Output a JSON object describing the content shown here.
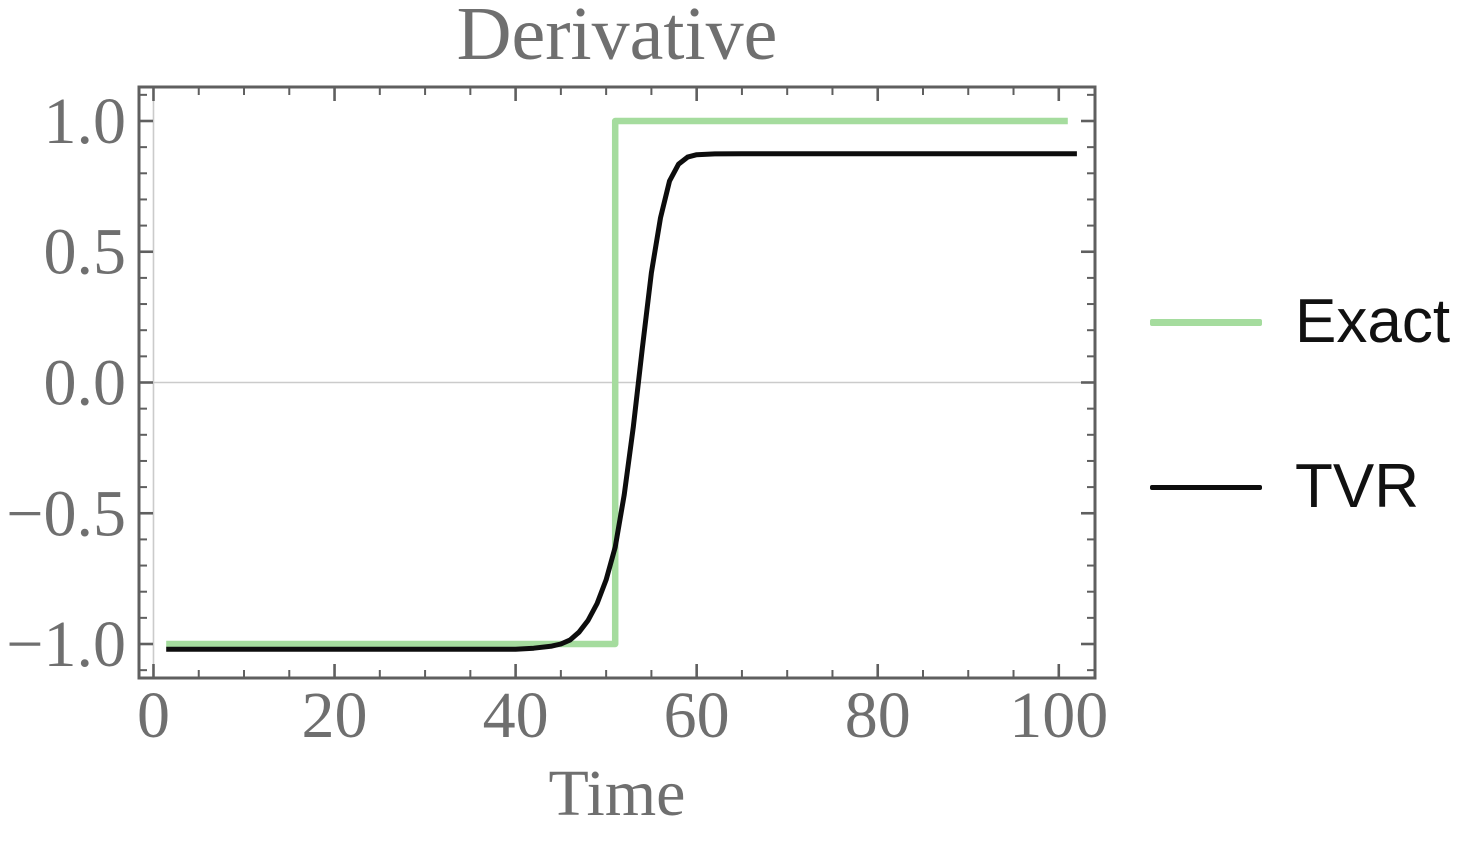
{
  "title": "Derivative",
  "xlabel": "Time",
  "colors": {
    "exact": "#A5DC9E",
    "tvr": "#0d0d0d",
    "frame": "#5f5f5f",
    "tick_text": "#6f6f6f",
    "grid": "#cbcbcb",
    "legend_text": "#111111",
    "background": "#ffffff"
  },
  "legend": [
    {
      "label": "Exact",
      "color_key": "exact"
    },
    {
      "label": "TVR",
      "color_key": "tvr"
    }
  ],
  "axes": {
    "x": {
      "ticks": [
        0,
        20,
        40,
        60,
        80,
        100
      ],
      "tick_labels": [
        "0",
        "20",
        "40",
        "60",
        "80",
        "100"
      ],
      "minor_step": 5,
      "range": [
        -1.6,
        104
      ]
    },
    "y": {
      "ticks": [
        -1,
        -0.5,
        0,
        0.5,
        1
      ],
      "tick_labels": [
        "−1.0",
        "−0.5",
        "0.0",
        "0.5",
        "1.0"
      ],
      "minor_step": 0.1,
      "range": [
        -1.13,
        1.13
      ]
    }
  },
  "chart_data": {
    "type": "line",
    "title": "Derivative",
    "xlabel": "Time",
    "ylabel": "",
    "xlim": [
      -1.6,
      104
    ],
    "ylim": [
      -1.13,
      1.13
    ],
    "grid": "origin-axes-only",
    "gridlines": {
      "x": [
        0
      ],
      "y": [
        0
      ]
    },
    "legend_position": "right-outside",
    "series": [
      {
        "name": "Exact",
        "color": "#A5DC9E",
        "stroke_width": 6.5,
        "x": [
          1.4,
          51,
          51,
          101
        ],
        "y": [
          -1,
          -1,
          1,
          1
        ]
      },
      {
        "name": "TVR",
        "color": "#0d0d0d",
        "stroke_width": 5,
        "x": [
          1.4,
          5,
          10,
          15,
          20,
          25,
          30,
          35,
          40,
          42,
          44,
          45,
          46,
          47,
          48,
          49,
          50,
          51,
          52,
          53,
          54,
          55,
          56,
          57,
          58,
          59,
          60,
          62,
          65,
          70,
          80,
          90,
          102
        ],
        "y": [
          -1.02,
          -1.02,
          -1.02,
          -1.02,
          -1.02,
          -1.02,
          -1.02,
          -1.02,
          -1.02,
          -1.016,
          -1.008,
          -1.0,
          -0.985,
          -0.955,
          -0.91,
          -0.845,
          -0.755,
          -0.63,
          -0.43,
          -0.17,
          0.13,
          0.42,
          0.63,
          0.77,
          0.835,
          0.862,
          0.871,
          0.874,
          0.875,
          0.875,
          0.875,
          0.875,
          0.875
        ]
      }
    ]
  }
}
